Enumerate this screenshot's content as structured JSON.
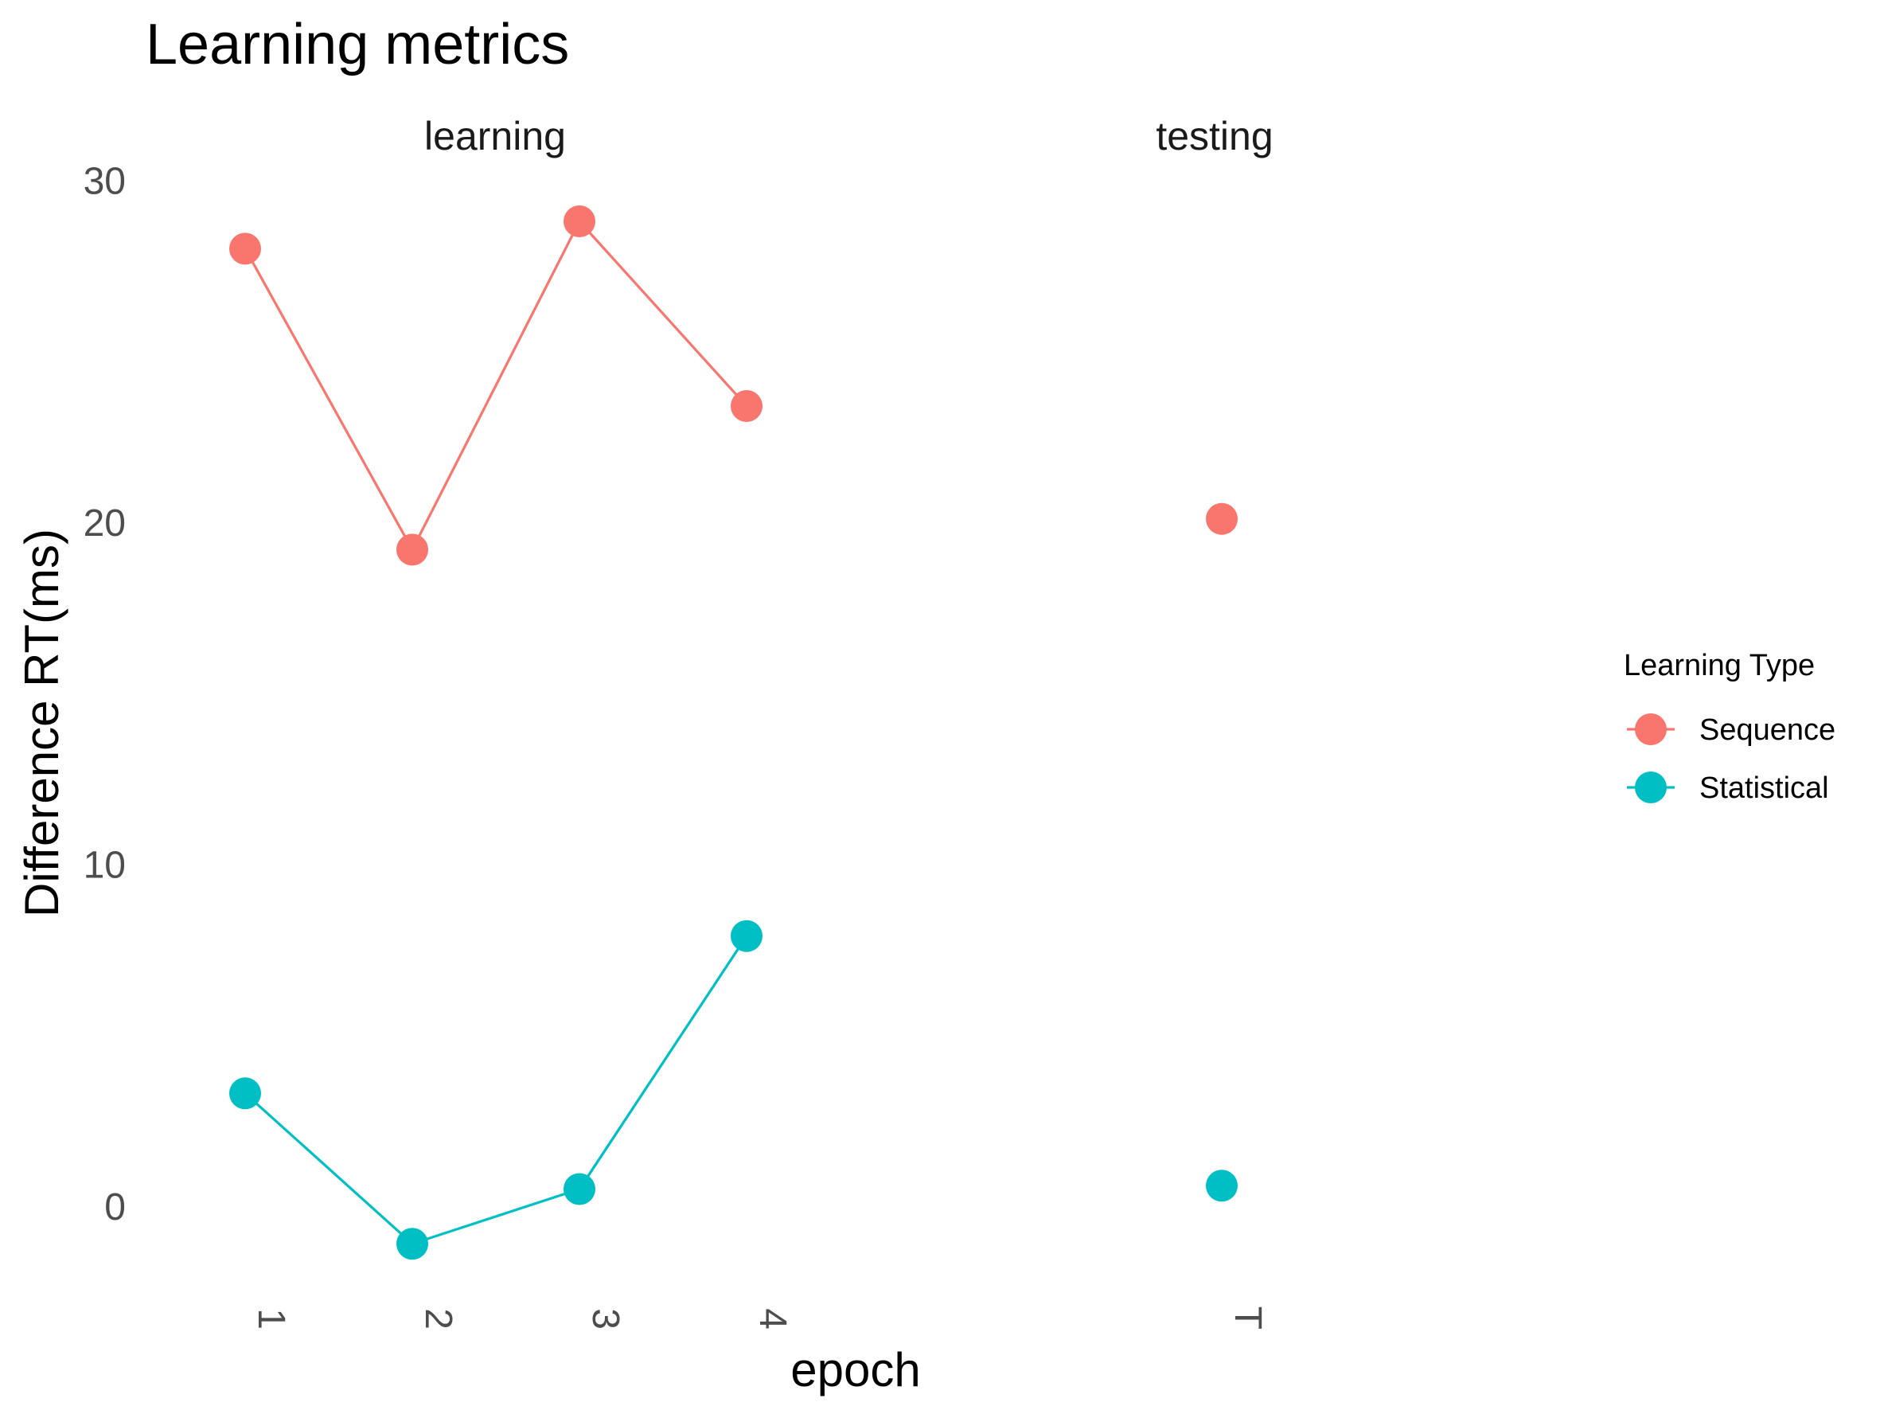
{
  "chart_data": {
    "type": "line",
    "title": "Learning metrics",
    "xlabel": "epoch",
    "ylabel": "Difference RT(ms)",
    "ylim": [
      -2.5,
      30.5
    ],
    "yticks": [
      0,
      10,
      20,
      30
    ],
    "grid": false,
    "facets": [
      {
        "label": "learning",
        "categories": [
          "1",
          "2",
          "3",
          "4"
        ]
      },
      {
        "label": "testing",
        "categories": [
          "T"
        ]
      }
    ],
    "legend": {
      "title": "Learning Type",
      "position": "right"
    },
    "series": [
      {
        "name": "Sequence",
        "color": "#F8766D",
        "learning": [
          28.0,
          19.2,
          28.8,
          23.4
        ],
        "testing": [
          20.1
        ]
      },
      {
        "name": "Statistical",
        "color": "#00BFC4",
        "learning": [
          3.3,
          -1.1,
          0.5,
          7.9
        ],
        "testing": [
          0.6
        ]
      }
    ]
  }
}
